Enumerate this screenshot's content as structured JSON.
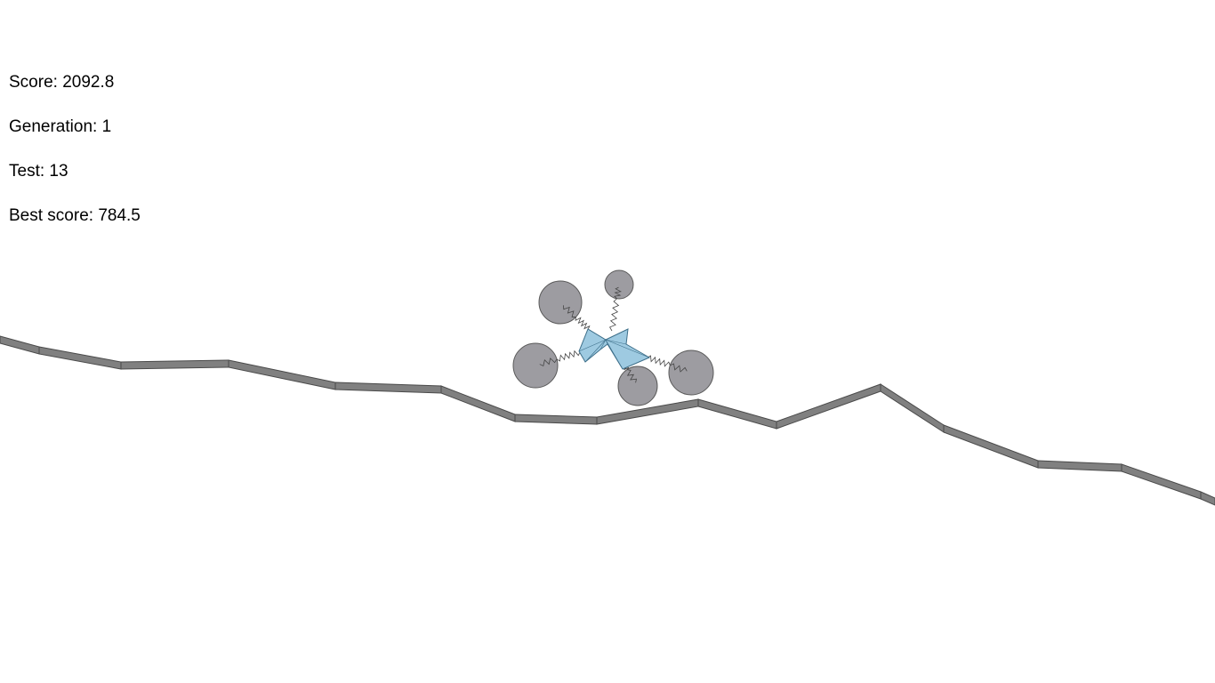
{
  "hud": {
    "score_label": "Score:",
    "score_value": "2092.8",
    "generation_label": "Generation:",
    "generation_value": "1",
    "test_label": "Test:",
    "test_value": "13",
    "best_label": "Best score:",
    "best_value": "784.5"
  },
  "colors": {
    "ground_fill": "#808080",
    "ground_stroke": "#4a4a4a",
    "wheel_fill": "#9d9ca1",
    "wheel_stroke": "#5a5a5a",
    "body_fill": "#9ecae1",
    "body_stroke": "#3d6f8a",
    "spring_stroke": "#444444"
  },
  "scene": {
    "ground_segments": 15,
    "wheel_count": 5,
    "body_color_name": "light-blue-polygon-body"
  }
}
